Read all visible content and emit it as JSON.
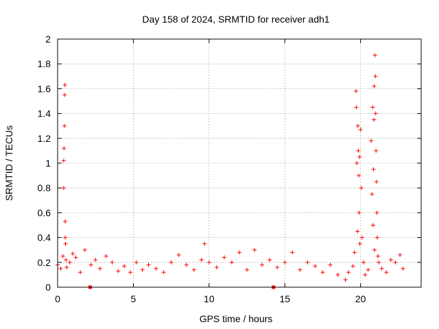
{
  "chart_data": {
    "type": "scatter",
    "title": "Day 158 of 2024, SRMTID for receiver adh1",
    "xlabel": "GPS time / hours",
    "ylabel": "SRMTID / TECUs",
    "xlim": [
      0,
      24
    ],
    "ylim": [
      0,
      2
    ],
    "xticks": [
      0,
      5,
      10,
      15,
      20
    ],
    "xtick_labels": [
      "0",
      "5",
      "10",
      "15",
      "20"
    ],
    "yticks": [
      0,
      0.2,
      0.4,
      0.6,
      0.8,
      1,
      1.2,
      1.4,
      1.6,
      1.8,
      2
    ],
    "ytick_labels": [
      "0",
      "0.2",
      "0.4",
      "0.6",
      "0.8",
      "1",
      "1.2",
      "1.4",
      "1.6",
      "1.8",
      "2"
    ],
    "grid": true,
    "marker": "+",
    "marker_color": "#ff0000",
    "series": [
      {
        "name": "SRMTID",
        "description": "approximate readings traced from the plot",
        "x": [
          0.0,
          0.2,
          0.35,
          0.4,
          0.4,
          0.42,
          0.45,
          0.46,
          0.48,
          0.5,
          0.5,
          0.52,
          0.55,
          0.6,
          0.8,
          1.0,
          1.2,
          1.5,
          1.8,
          2.2,
          2.5,
          2.8,
          3.2,
          3.6,
          4.0,
          4.4,
          4.8,
          5.2,
          5.6,
          6.0,
          6.5,
          7.0,
          7.5,
          8.0,
          8.5,
          9.0,
          9.5,
          9.7,
          10.0,
          10.5,
          11.0,
          11.5,
          12.0,
          12.5,
          13.0,
          13.5,
          14.0,
          14.5,
          15.0,
          15.5,
          16.0,
          16.5,
          17.0,
          17.5,
          18.0,
          18.5,
          19.0,
          19.2,
          19.5,
          19.6,
          19.7,
          19.72,
          19.75,
          19.8,
          19.82,
          19.85,
          19.88,
          19.9,
          19.93,
          19.95,
          20.0,
          20.05,
          20.1,
          20.2,
          20.3,
          20.5,
          20.7,
          20.75,
          20.8,
          20.82,
          20.85,
          20.88,
          20.9,
          20.92,
          20.95,
          20.98,
          21.0,
          21.02,
          21.05,
          21.08,
          21.1,
          21.15,
          21.2,
          21.4,
          21.7,
          22.0,
          22.3,
          22.6,
          22.8
        ],
        "y": [
          0.18,
          0.15,
          0.25,
          0.8,
          1.02,
          1.12,
          1.3,
          1.55,
          1.63,
          0.53,
          0.4,
          0.35,
          0.22,
          0.16,
          0.2,
          0.27,
          0.24,
          0.12,
          0.3,
          0.18,
          0.22,
          0.15,
          0.25,
          0.2,
          0.13,
          0.17,
          0.12,
          0.2,
          0.14,
          0.18,
          0.15,
          0.12,
          0.2,
          0.26,
          0.18,
          0.14,
          0.22,
          0.35,
          0.2,
          0.16,
          0.24,
          0.2,
          0.28,
          0.14,
          0.3,
          0.18,
          0.22,
          0.16,
          0.2,
          0.28,
          0.14,
          0.2,
          0.17,
          0.12,
          0.18,
          0.1,
          0.06,
          0.12,
          0.17,
          0.28,
          1.58,
          1.45,
          1.0,
          0.45,
          1.3,
          1.1,
          0.9,
          0.6,
          1.05,
          0.35,
          1.27,
          0.8,
          0.4,
          0.2,
          0.1,
          0.14,
          1.18,
          0.75,
          1.45,
          0.5,
          0.95,
          1.35,
          1.62,
          0.3,
          1.87,
          1.7,
          1.4,
          1.1,
          0.85,
          0.6,
          0.4,
          0.25,
          0.2,
          0.15,
          0.12,
          0.22,
          0.2,
          0.26,
          0.15
        ]
      }
    ],
    "outliers": {
      "description": "points plotted on the zero line",
      "x": [
        2.15,
        14.25
      ],
      "y": [
        0,
        0
      ]
    }
  }
}
